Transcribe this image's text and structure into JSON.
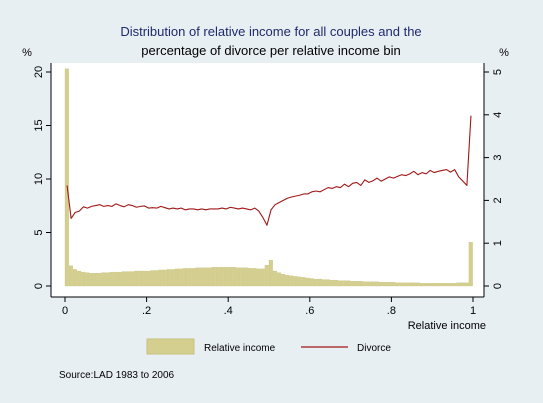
{
  "chart_data": {
    "type": "bar",
    "title_line1": "Distribution of relative income for all couples and the",
    "title_line2": "percentage of divorce per relative income bin",
    "xlabel": "Relative income",
    "ylabel_left": "%",
    "ylabel_right": "%",
    "xlim": [
      0,
      1
    ],
    "ylim_left": [
      0,
      20
    ],
    "ylim_right": [
      0,
      5
    ],
    "x_ticks": [
      0,
      0.2,
      0.4,
      0.6,
      0.8,
      1
    ],
    "x_tick_labels": [
      "0",
      ".2",
      ".4",
      ".6",
      ".8",
      "1"
    ],
    "y_left_ticks": [
      0,
      5,
      10,
      15,
      20
    ],
    "y_left_tick_labels": [
      "0",
      "5",
      "10",
      "15",
      "20"
    ],
    "y_right_ticks": [
      0,
      1,
      2,
      3,
      4,
      5
    ],
    "y_right_tick_labels": [
      "0",
      "1",
      "2",
      "3",
      "4",
      "5"
    ],
    "grid": false,
    "legend_position": "bottom",
    "source": "Source:LAD 1983 to 2006",
    "colors": {
      "outer_background": "#e8eff3",
      "plot_background": "#ffffff",
      "bar_fill": "#d5cf8f",
      "bar_stroke": "#c6c07e",
      "line": "#a01818",
      "title_line1": "#1e2a6b",
      "text": "#000000"
    },
    "series": [
      {
        "name": "Relative income",
        "kind": "bar",
        "axis": "left",
        "bin_width": 0.01,
        "x": [
          0,
          0.01,
          0.02,
          0.03,
          0.04,
          0.05,
          0.06,
          0.07,
          0.08,
          0.09,
          0.1,
          0.11,
          0.12,
          0.13,
          0.14,
          0.15,
          0.16,
          0.17,
          0.18,
          0.19,
          0.2,
          0.21,
          0.22,
          0.23,
          0.24,
          0.25,
          0.26,
          0.27,
          0.28,
          0.29,
          0.3,
          0.31,
          0.32,
          0.33,
          0.34,
          0.35,
          0.36,
          0.37,
          0.38,
          0.39,
          0.4,
          0.41,
          0.42,
          0.43,
          0.44,
          0.45,
          0.46,
          0.47,
          0.48,
          0.49,
          0.5,
          0.51,
          0.52,
          0.53,
          0.54,
          0.55,
          0.56,
          0.57,
          0.58,
          0.59,
          0.6,
          0.61,
          0.62,
          0.63,
          0.64,
          0.65,
          0.66,
          0.67,
          0.68,
          0.69,
          0.7,
          0.71,
          0.72,
          0.73,
          0.74,
          0.75,
          0.76,
          0.77,
          0.78,
          0.79,
          0.8,
          0.81,
          0.82,
          0.83,
          0.84,
          0.85,
          0.86,
          0.87,
          0.88,
          0.89,
          0.9,
          0.91,
          0.92,
          0.93,
          0.94,
          0.95,
          0.96,
          0.97,
          0.98,
          0.99
        ],
        "values": [
          20.3,
          1.9,
          1.55,
          1.4,
          1.3,
          1.25,
          1.2,
          1.2,
          1.2,
          1.25,
          1.25,
          1.3,
          1.3,
          1.3,
          1.35,
          1.35,
          1.35,
          1.4,
          1.4,
          1.4,
          1.4,
          1.45,
          1.45,
          1.5,
          1.5,
          1.55,
          1.55,
          1.6,
          1.6,
          1.65,
          1.65,
          1.65,
          1.7,
          1.7,
          1.7,
          1.7,
          1.75,
          1.75,
          1.75,
          1.75,
          1.75,
          1.75,
          1.7,
          1.7,
          1.7,
          1.65,
          1.65,
          1.6,
          1.6,
          1.95,
          2.4,
          1.4,
          1.25,
          1.1,
          1.0,
          0.95,
          0.9,
          0.85,
          0.8,
          0.75,
          0.7,
          0.65,
          0.65,
          0.6,
          0.6,
          0.55,
          0.55,
          0.5,
          0.5,
          0.5,
          0.45,
          0.45,
          0.45,
          0.4,
          0.4,
          0.4,
          0.4,
          0.35,
          0.35,
          0.35,
          0.35,
          0.3,
          0.3,
          0.3,
          0.3,
          0.3,
          0.3,
          0.25,
          0.25,
          0.25,
          0.25,
          0.25,
          0.25,
          0.25,
          0.25,
          0.25,
          0.3,
          0.3,
          0.3,
          4.1
        ]
      },
      {
        "name": "Divorce",
        "kind": "line",
        "axis": "right",
        "x": [
          0.005,
          0.015,
          0.025,
          0.035,
          0.045,
          0.055,
          0.065,
          0.075,
          0.085,
          0.095,
          0.105,
          0.115,
          0.125,
          0.135,
          0.145,
          0.155,
          0.165,
          0.175,
          0.185,
          0.195,
          0.205,
          0.215,
          0.225,
          0.235,
          0.245,
          0.255,
          0.265,
          0.275,
          0.285,
          0.295,
          0.305,
          0.315,
          0.325,
          0.335,
          0.345,
          0.355,
          0.365,
          0.375,
          0.385,
          0.395,
          0.405,
          0.415,
          0.425,
          0.435,
          0.445,
          0.455,
          0.465,
          0.475,
          0.485,
          0.495,
          0.505,
          0.515,
          0.525,
          0.535,
          0.545,
          0.555,
          0.565,
          0.575,
          0.585,
          0.595,
          0.605,
          0.615,
          0.625,
          0.635,
          0.645,
          0.655,
          0.665,
          0.675,
          0.685,
          0.695,
          0.705,
          0.715,
          0.725,
          0.735,
          0.745,
          0.755,
          0.765,
          0.775,
          0.785,
          0.795,
          0.805,
          0.815,
          0.825,
          0.835,
          0.845,
          0.855,
          0.865,
          0.875,
          0.885,
          0.895,
          0.905,
          0.915,
          0.925,
          0.935,
          0.945,
          0.955,
          0.965,
          0.975,
          0.985,
          0.995
        ],
        "values": [
          2.35,
          1.58,
          1.72,
          1.75,
          1.85,
          1.82,
          1.86,
          1.88,
          1.9,
          1.86,
          1.88,
          1.86,
          1.92,
          1.88,
          1.85,
          1.9,
          1.88,
          1.84,
          1.86,
          1.87,
          1.82,
          1.83,
          1.82,
          1.86,
          1.83,
          1.8,
          1.82,
          1.8,
          1.82,
          1.78,
          1.8,
          1.8,
          1.78,
          1.8,
          1.78,
          1.8,
          1.8,
          1.8,
          1.82,
          1.8,
          1.84,
          1.82,
          1.8,
          1.82,
          1.8,
          1.78,
          1.82,
          1.75,
          1.6,
          1.42,
          1.78,
          1.9,
          1.95,
          2.0,
          2.05,
          2.08,
          2.1,
          2.12,
          2.15,
          2.15,
          2.2,
          2.22,
          2.2,
          2.25,
          2.3,
          2.28,
          2.32,
          2.3,
          2.38,
          2.32,
          2.4,
          2.42,
          2.35,
          2.48,
          2.42,
          2.46,
          2.52,
          2.45,
          2.5,
          2.55,
          2.52,
          2.56,
          2.6,
          2.58,
          2.62,
          2.68,
          2.6,
          2.65,
          2.62,
          2.7,
          2.65,
          2.68,
          2.7,
          2.72,
          2.66,
          2.72,
          2.55,
          2.45,
          2.35,
          3.98
        ]
      }
    ]
  }
}
